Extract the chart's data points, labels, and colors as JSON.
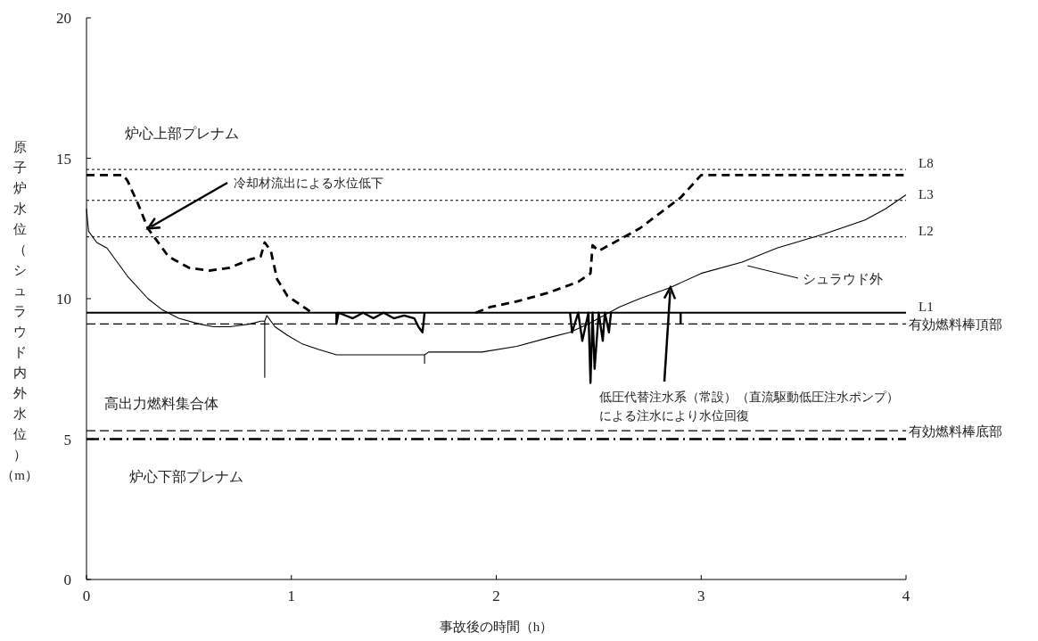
{
  "chart_data": {
    "type": "line",
    "xlabel": "事故後の時間（h）",
    "ylabel": "原子炉水位（シュラウド内外水位）（m）",
    "xlim": [
      0,
      4
    ],
    "xticks": [
      0,
      1,
      2,
      3,
      4
    ],
    "ylim": [
      0,
      20
    ],
    "yticks": [
      0,
      5,
      10,
      15,
      20
    ],
    "grid": false,
    "legend": "right",
    "marker": "none",
    "series": [
      {
        "name": "シュラウド外",
        "color": "#000000",
        "line_style": "solid",
        "x": [
          0,
          0.01,
          0.05,
          0.1,
          0.2,
          0.3,
          0.37,
          0.45,
          0.55,
          0.62,
          0.7,
          0.8,
          0.85,
          0.87,
          0.87,
          0.87,
          0.88,
          0.92,
          0.98,
          1.05,
          1.13,
          1.22,
          1.4,
          1.65,
          1.65,
          1.65,
          1.67,
          1.8,
          1.93,
          2.1,
          2.25,
          2.36,
          2.45,
          2.5,
          2.6,
          2.7,
          2.85,
          3.0,
          3.2,
          3.37,
          3.6,
          3.8,
          3.9,
          4.0
        ],
        "values": [
          13.2,
          12.4,
          12.0,
          11.8,
          10.8,
          10.0,
          9.6,
          9.3,
          9.1,
          9.0,
          9.0,
          9.1,
          9.2,
          9.2,
          7.2,
          9.2,
          9.4,
          9.0,
          8.7,
          8.4,
          8.2,
          8.0,
          8.0,
          8.0,
          7.7,
          8.0,
          8.1,
          8.1,
          8.1,
          8.3,
          8.6,
          8.8,
          9.1,
          9.3,
          9.7,
          10.0,
          10.4,
          10.9,
          11.3,
          11.8,
          12.3,
          12.8,
          13.2,
          13.7
        ]
      },
      {
        "color": "#000000",
        "line_style": "dashed",
        "x": [
          0,
          0.18,
          0.2,
          0.25,
          0.3,
          0.4,
          0.5,
          0.6,
          0.7,
          0.8,
          0.85,
          0.87,
          0.9,
          0.93,
          0.98,
          1.06,
          1.1
        ],
        "values": [
          14.4,
          14.4,
          14.2,
          13.4,
          12.5,
          11.5,
          11.1,
          11.0,
          11.1,
          11.4,
          11.5,
          12.0,
          11.7,
          10.7,
          10.1,
          9.7,
          9.5
        ]
      },
      {
        "color": "#000000",
        "line_style": "dashed",
        "x": [
          1.9,
          1.97,
          2.1,
          2.25,
          2.4,
          2.46,
          2.47,
          2.5,
          2.7,
          2.9,
          3.0,
          4.0
        ],
        "values": [
          9.5,
          9.7,
          9.9,
          10.2,
          10.6,
          10.9,
          11.9,
          11.7,
          12.5,
          13.6,
          14.4,
          14.4
        ]
      },
      {
        "color": "#000000",
        "line_style": "solid",
        "x": [
          1.22,
          1.22,
          1.23,
          1.3,
          1.35,
          1.4,
          1.45,
          1.5,
          1.55,
          1.6,
          1.62,
          1.64,
          1.65
        ],
        "values": [
          9.5,
          9.1,
          9.5,
          9.3,
          9.5,
          9.3,
          9.5,
          9.3,
          9.4,
          9.3,
          9.0,
          8.8,
          9.5
        ]
      },
      {
        "color": "#000000",
        "line_style": "solid",
        "x": [
          2.36,
          2.37,
          2.4,
          2.42,
          2.45,
          2.46,
          2.47,
          2.48,
          2.5,
          2.52,
          2.53,
          2.55,
          2.56
        ],
        "values": [
          9.5,
          8.8,
          9.5,
          8.5,
          9.5,
          7.0,
          9.5,
          7.5,
          9.5,
          8.5,
          9.5,
          8.8,
          9.5
        ]
      },
      {
        "color": "#000000",
        "line_style": "solid",
        "x": [
          2.9,
          2.9
        ],
        "values": [
          9.5,
          9.1
        ]
      }
    ],
    "ref_lines": [
      {
        "axis": "y",
        "value": 14.6,
        "label": "L8",
        "line_style": "dotted",
        "color": "#000000"
      },
      {
        "axis": "y",
        "value": 13.5,
        "label": "L3",
        "line_style": "dotted",
        "color": "#000000"
      },
      {
        "axis": "y",
        "value": 12.2,
        "label": "L2",
        "line_style": "dotted",
        "color": "#000000"
      },
      {
        "axis": "y",
        "value": 9.5,
        "label": "L1",
        "line_style": "solid",
        "color": "#000000"
      },
      {
        "axis": "y",
        "value": 9.1,
        "label": "有効燃料棒頂部",
        "line_style": "dashed",
        "color": "#000000"
      },
      {
        "axis": "y",
        "value": 5.3,
        "label": "有効燃料棒底部",
        "line_style": "dashed",
        "color": "#000000"
      },
      {
        "axis": "y",
        "value": 5.0,
        "line_style": "dashdot",
        "color": "#000000"
      }
    ],
    "annotations": [
      "炉心上部プレナム",
      "高出力燃料集合体",
      "炉心下部プレナム",
      {
        "text": "冷却材流出による水位低下",
        "x": 0.3,
        "y": 12.5
      },
      {
        "text": "低圧代替注水系（常設）（直流駆動低圧注水ポンプ）による注水により水位回復",
        "x": 2.85,
        "y": 10.4
      }
    ]
  }
}
